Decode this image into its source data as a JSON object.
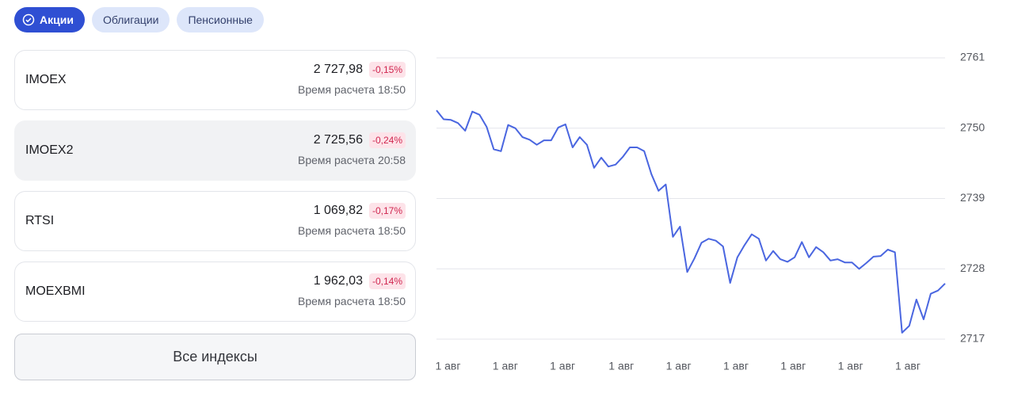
{
  "tabs": [
    {
      "label": "Акции",
      "active": true
    },
    {
      "label": "Облигации",
      "active": false
    },
    {
      "label": "Пенсионные",
      "active": false
    }
  ],
  "indices": [
    {
      "name": "IMOEX",
      "value": "2 727,98",
      "change": "-0,15%",
      "time": "Время расчета 18:50",
      "selected": false
    },
    {
      "name": "IMOEX2",
      "value": "2 725,56",
      "change": "-0,24%",
      "time": "Время расчета 20:58",
      "selected": true
    },
    {
      "name": "RTSI",
      "value": "1 069,82",
      "change": "-0,17%",
      "time": "Время расчета 18:50",
      "selected": false
    },
    {
      "name": "MOEXBMI",
      "value": "1 962,03",
      "change": "-0,14%",
      "time": "Время расчета 18:50",
      "selected": false
    }
  ],
  "all_button": "Все индексы",
  "chart_data": {
    "type": "line",
    "series": [
      {
        "color": "#4a66e0",
        "values": [
          2752.8,
          2751.4,
          2751.3,
          2750.8,
          2749.6,
          2752.6,
          2752.1,
          2750.2,
          2746.7,
          2746.4,
          2750.5,
          2750.0,
          2748.6,
          2748.2,
          2747.4,
          2748.1,
          2748.1,
          2750.1,
          2750.6,
          2747.0,
          2748.6,
          2747.4,
          2743.8,
          2745.4,
          2744.0,
          2744.3,
          2745.5,
          2747.0,
          2747.0,
          2746.4,
          2742.8,
          2740.2,
          2741.2,
          2733.0,
          2734.6,
          2727.5,
          2729.6,
          2732.1,
          2732.7,
          2732.4,
          2731.5,
          2725.8,
          2729.8,
          2731.7,
          2733.4,
          2732.7,
          2729.3,
          2730.8,
          2729.5,
          2729.1,
          2729.8,
          2732.2,
          2729.8,
          2731.4,
          2730.6,
          2729.3,
          2729.5,
          2729.0,
          2729.0,
          2728.0,
          2728.9,
          2729.9,
          2730.0,
          2731.0,
          2730.6,
          2718.0,
          2719.1,
          2723.2,
          2720.1,
          2724.1,
          2724.6,
          2725.7
        ]
      }
    ],
    "xlim": [
      0,
      71
    ],
    "xticks": [
      {
        "value": 1.6,
        "label": "1 авг"
      },
      {
        "value": 9.6,
        "label": "1 авг"
      },
      {
        "value": 17.6,
        "label": "1 авг"
      },
      {
        "value": 25.8,
        "label": "1 авг"
      },
      {
        "value": 33.8,
        "label": "1 авг"
      },
      {
        "value": 41.8,
        "label": "1 авг"
      },
      {
        "value": 49.8,
        "label": "1 авг"
      },
      {
        "value": 57.8,
        "label": "1 авг"
      },
      {
        "value": 65.8,
        "label": "1 авг"
      }
    ],
    "ylim": [
      2717,
      2761
    ],
    "yticks": [
      2717,
      2728,
      2739,
      2750,
      2761
    ],
    "grid": true
  }
}
